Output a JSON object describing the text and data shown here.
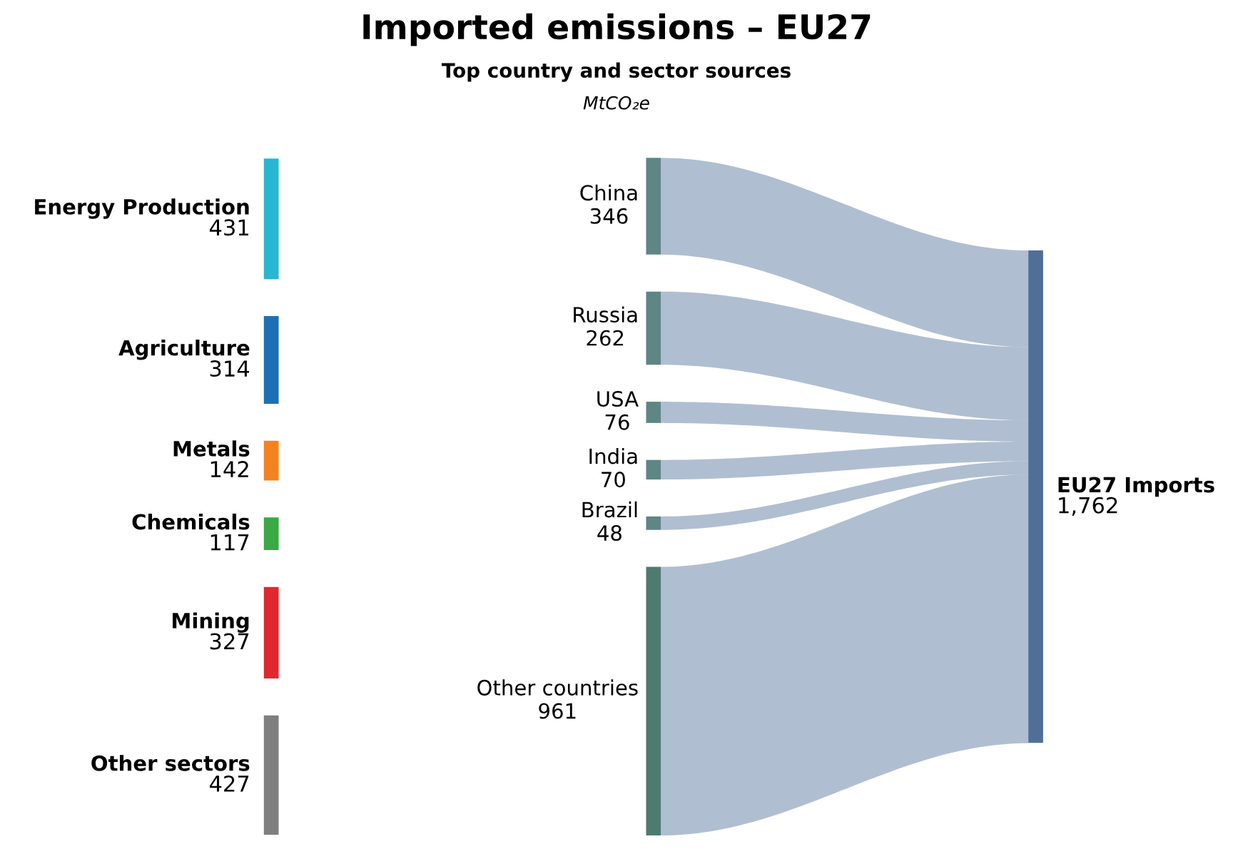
{
  "chart_data": {
    "type": "other",
    "title": "Imported emissions – EU27",
    "subtitle": "Top country and sector sources",
    "annotations": [
      "MtCO₂e"
    ],
    "categories": [
      "Energy Production",
      "Agriculture",
      "Metals",
      "Chemicals",
      "Mining",
      "Other sectors",
      "China",
      "Russia",
      "USA",
      "India",
      "Brazil",
      "Other countries",
      "EU27 Imports"
    ],
    "series": [
      {
        "values": [
          431,
          314,
          142,
          117,
          327,
          427,
          null,
          null,
          null,
          null,
          null,
          null,
          null
        ],
        "value_labels": [
          "431",
          "314",
          "142",
          "117",
          "327",
          "427",
          null,
          null,
          null,
          null,
          null,
          null,
          null
        ]
      },
      {
        "values": [
          null,
          null,
          null,
          null,
          null,
          null,
          346,
          262,
          76,
          70,
          48,
          961,
          null
        ],
        "value_labels": [
          null,
          null,
          null,
          null,
          null,
          null,
          "346",
          "262",
          "76",
          "70",
          "48",
          "961",
          null
        ]
      },
      {
        "values": [
          null,
          null,
          null,
          null,
          null,
          null,
          null,
          null,
          null,
          null,
          null,
          null,
          1762
        ],
        "value_labels": [
          null,
          null,
          null,
          null,
          null,
          null,
          null,
          null,
          null,
          null,
          null,
          null,
          "1,762"
        ]
      }
    ],
    "colors": [
      "#29b6d2",
      "#1f6fb5",
      "#f58220",
      "#3aa843",
      "#e0282e",
      "#7f7f7f",
      "#5f8585",
      "#5f8585",
      "#5f8585",
      "#5f8585",
      "#5f8585",
      "#4f7a70",
      "#4f6f99"
    ]
  }
}
